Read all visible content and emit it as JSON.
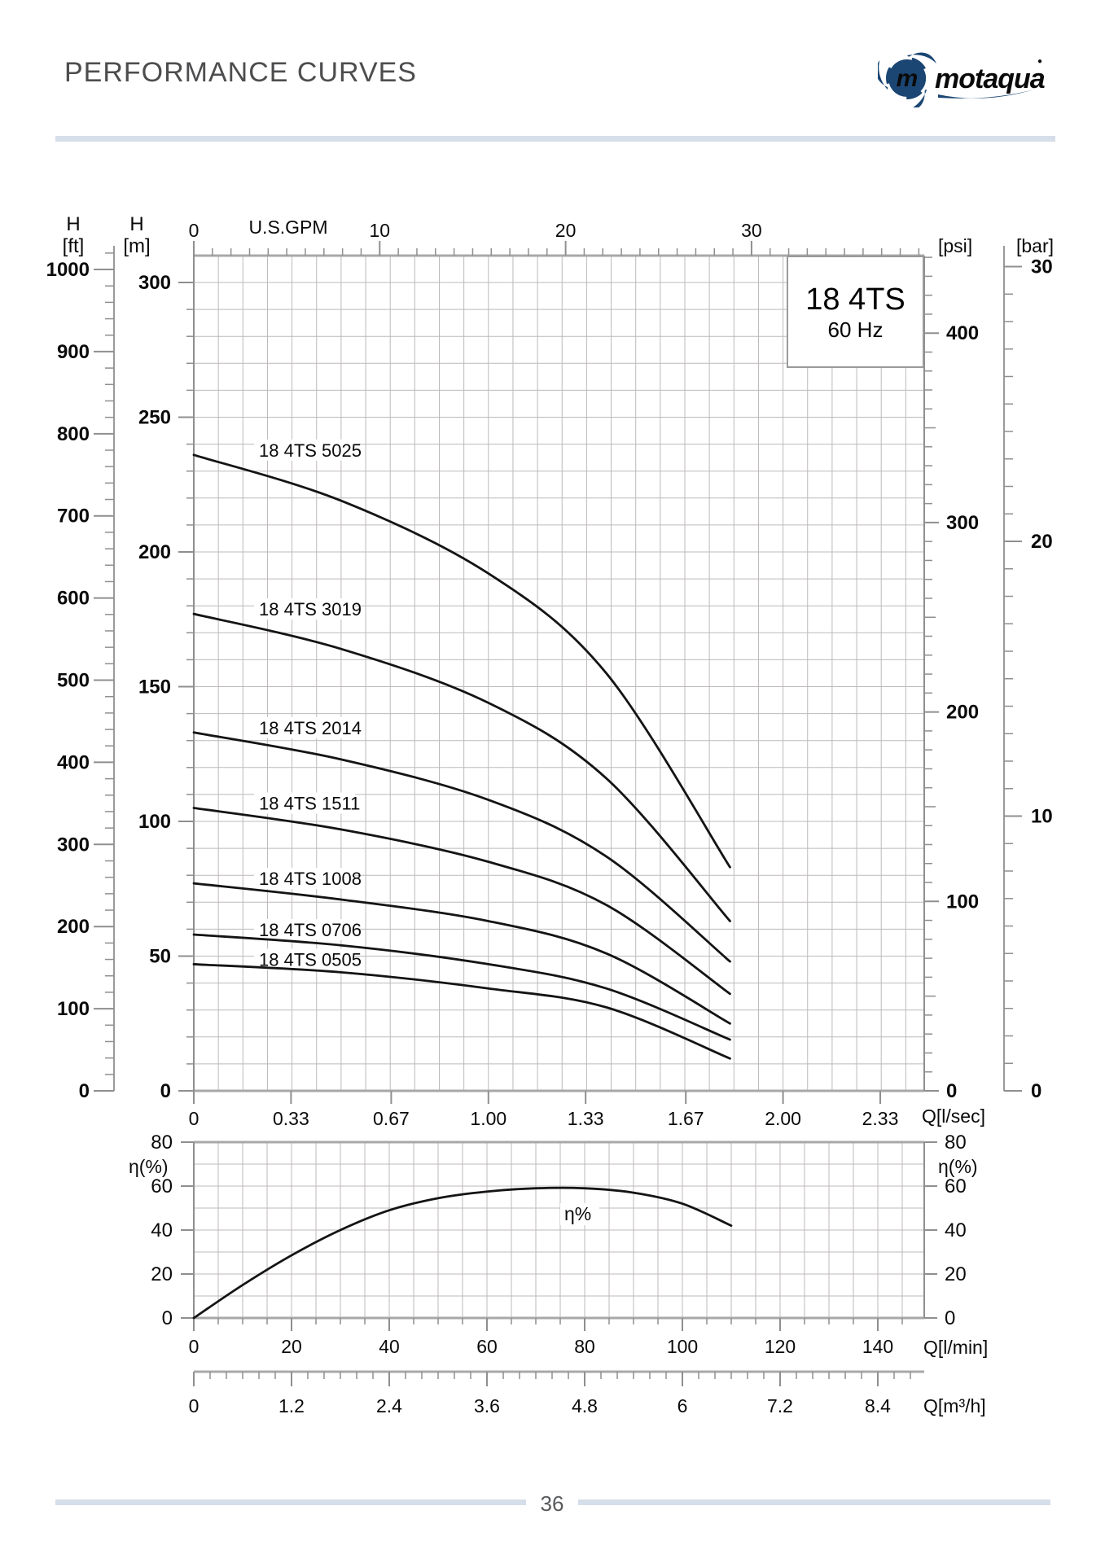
{
  "header": {
    "title": "PERFORMANCE CURVES",
    "logo_text": "motaqua",
    "registered_mark": "●"
  },
  "model_box": {
    "model": "18 4TS",
    "frequency": "60 Hz"
  },
  "axis_labels": {
    "head_ft": "H",
    "unit_ft": "[ft]",
    "head_m": "H",
    "unit_m": "[m]",
    "top_gpm": "U.S.GPM",
    "right_psi": "[psi]",
    "right_bar": "[bar]",
    "bottom_lsec": "Q[l/sec]",
    "eff_left": "η(%)",
    "eff_right": "η(%)",
    "eff_bottom_lmin": "Q[l/min]",
    "eff_bottom_m3h": "Q[m³/h]",
    "eff_curve": "η%"
  },
  "footer": {
    "page_number": "36"
  },
  "colors": {
    "accent_bar": "#d6dee9",
    "logo_navy": "#1b4673",
    "curve": "#141414",
    "grid": "#bdb9b9",
    "frame": "#9a9a9a",
    "title_gray": "#4d4d4f"
  },
  "chart_data": [
    {
      "type": "line",
      "title": "18 4TS 60 Hz — Head vs Flow",
      "xlabel": "Q [l/sec]",
      "x2label": "U.S.GPM",
      "ylabel": "H [m]",
      "y2labels": [
        "H [ft]",
        "[psi]",
        "[bar]"
      ],
      "grid": true,
      "xlim_lsec": [
        0,
        2.48
      ],
      "ylim_m": [
        0,
        310
      ],
      "x_ticks_lsec": [
        "0",
        "0.33",
        "0.67",
        "1.00",
        "1.33",
        "1.67",
        "2.00",
        "2.33"
      ],
      "x_ticks_gpm": [
        "0",
        "10",
        "20",
        "30"
      ],
      "y_ticks_m": [
        0,
        50,
        100,
        150,
        200,
        250,
        300
      ],
      "y_ticks_ft": [
        0,
        100,
        200,
        300,
        400,
        500,
        600,
        700,
        800,
        900,
        1000
      ],
      "y_ticks_psi": [
        0,
        100,
        200,
        300,
        400
      ],
      "y_ticks_bar": [
        0,
        10,
        20,
        30
      ],
      "series": [
        {
          "name": "18 4TS 5025",
          "points_q_ls_h_m": [
            [
              0,
              236
            ],
            [
              0.5,
              219
            ],
            [
              1.0,
              192
            ],
            [
              1.4,
              155
            ],
            [
              1.82,
              83
            ]
          ]
        },
        {
          "name": "18 4TS 3019",
          "points_q_ls_h_m": [
            [
              0,
              177
            ],
            [
              0.5,
              164
            ],
            [
              1.0,
              144
            ],
            [
              1.4,
              116
            ],
            [
              1.82,
              63
            ]
          ]
        },
        {
          "name": "18 4TS 2014",
          "points_q_ls_h_m": [
            [
              0,
              133
            ],
            [
              0.5,
              123
            ],
            [
              1.0,
              108
            ],
            [
              1.4,
              87
            ],
            [
              1.82,
              48
            ]
          ]
        },
        {
          "name": "18 4TS 1511",
          "points_q_ls_h_m": [
            [
              0,
              105
            ],
            [
              0.5,
              97
            ],
            [
              1.0,
              85
            ],
            [
              1.4,
              69
            ],
            [
              1.82,
              36
            ]
          ]
        },
        {
          "name": "18 4TS 1008",
          "points_q_ls_h_m": [
            [
              0,
              77
            ],
            [
              0.5,
              71
            ],
            [
              1.0,
              63
            ],
            [
              1.4,
              51
            ],
            [
              1.82,
              25
            ]
          ]
        },
        {
          "name": "18 4TS 0706",
          "points_q_ls_h_m": [
            [
              0,
              58
            ],
            [
              0.5,
              54
            ],
            [
              1.0,
              47
            ],
            [
              1.4,
              38
            ],
            [
              1.82,
              19
            ]
          ]
        },
        {
          "name": "18 4TS 0505",
          "points_q_ls_h_m": [
            [
              0,
              47
            ],
            [
              0.5,
              44
            ],
            [
              1.0,
              38
            ],
            [
              1.4,
              31
            ],
            [
              1.82,
              12
            ]
          ]
        }
      ]
    },
    {
      "type": "line",
      "title": "Efficiency",
      "xlabel": "Q [l/min]",
      "x2label": "Q [m³/h]",
      "ylabel": "η (%)",
      "grid": true,
      "xlim_lmin": [
        0,
        149.5
      ],
      "ylim_pct": [
        0,
        80
      ],
      "x_ticks_lmin": [
        "0",
        "20",
        "40",
        "60",
        "80",
        "100",
        "120",
        "140"
      ],
      "x_ticks_m3h": [
        "0",
        "1.2",
        "2.4",
        "3.6",
        "4.8",
        "6",
        "7.2",
        "8.4"
      ],
      "y_ticks_pct": [
        0,
        20,
        40,
        60,
        80
      ],
      "series": [
        {
          "name": "η%",
          "points_q_lmin_eta": [
            [
              0,
              0
            ],
            [
              10,
              15
            ],
            [
              20,
              28.5
            ],
            [
              30,
              40
            ],
            [
              40,
              49
            ],
            [
              50,
              54.5
            ],
            [
              60,
              57.5
            ],
            [
              70,
              59
            ],
            [
              80,
              59
            ],
            [
              90,
              57
            ],
            [
              100,
              52
            ],
            [
              110,
              42
            ]
          ]
        }
      ]
    }
  ]
}
